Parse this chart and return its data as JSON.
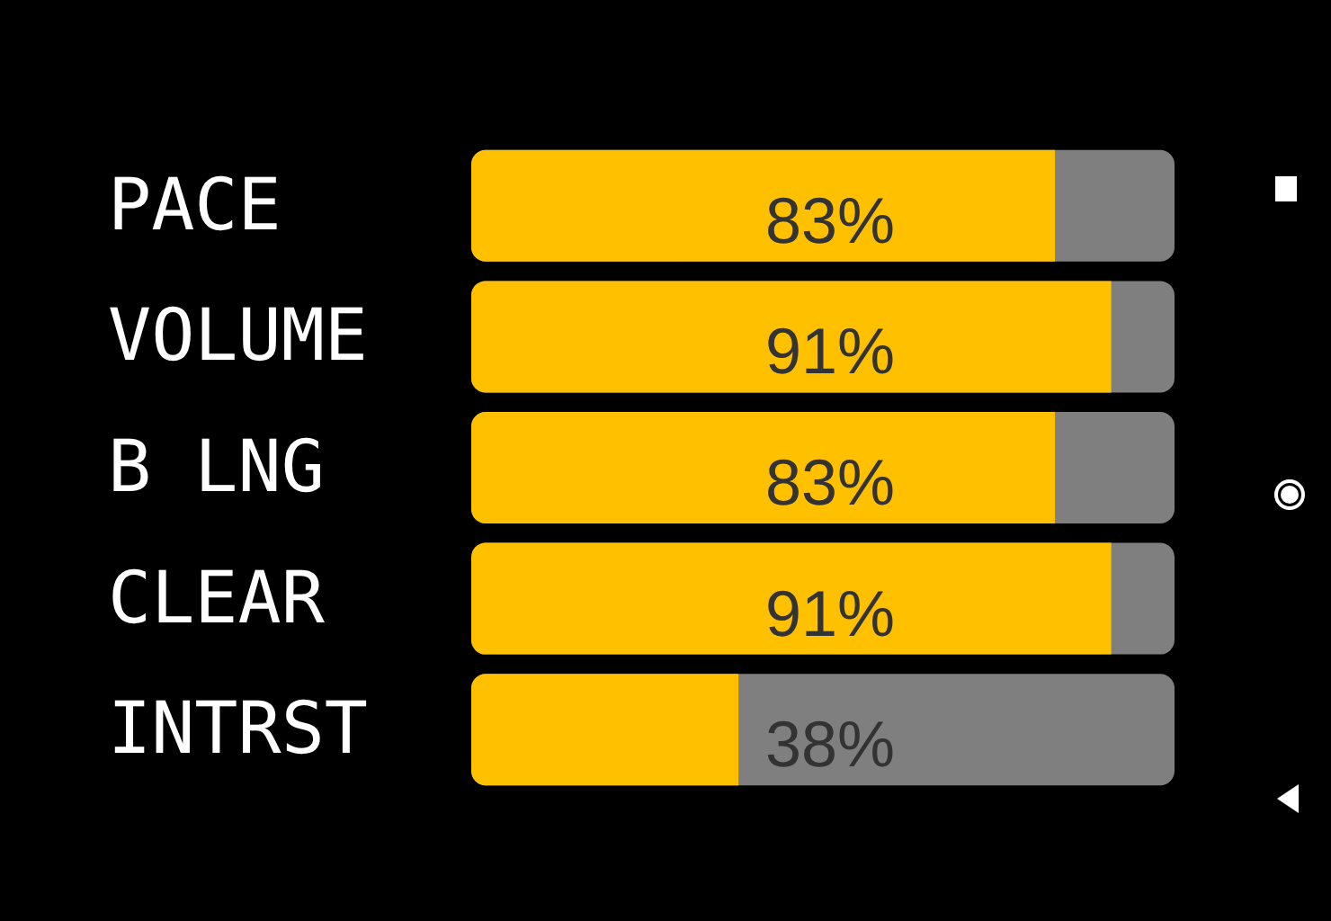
{
  "chart_data": {
    "type": "bar",
    "orientation": "horizontal",
    "categories": [
      "PACE",
      "VOLUME",
      "B LNG",
      "CLEAR",
      "INTRST"
    ],
    "values": [
      83,
      91,
      83,
      91,
      38
    ],
    "value_labels": [
      "83%",
      "91%",
      "83%",
      "91%",
      "38%"
    ],
    "color": "#ffc000",
    "xlim": [
      0,
      100
    ],
    "tick_labels": "y"
  }
}
